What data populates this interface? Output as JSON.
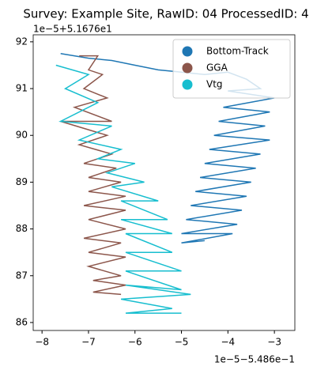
{
  "chart_data": {
    "type": "line",
    "title": "Survey: Example Site, RawID: 04 ProcessedID: 4",
    "x_offset_label": "1e−5−5.486e−1",
    "y_offset_label": "1e−5+5.1676e1",
    "xlim": [
      -8.19,
      -2.56
    ],
    "ylim": [
      85.83,
      92.15
    ],
    "xticks": [
      {
        "value": -8,
        "label": "−8"
      },
      {
        "value": -7,
        "label": "−7"
      },
      {
        "value": -6,
        "label": "−6"
      },
      {
        "value": -5,
        "label": "−5"
      },
      {
        "value": -4,
        "label": "−4"
      },
      {
        "value": -3,
        "label": "−3"
      }
    ],
    "yticks": [
      86,
      87,
      88,
      89,
      90,
      91,
      92
    ],
    "grid": false,
    "legend": "upper right",
    "series": [
      {
        "name": "Bottom-Track",
        "color": "#1f77b4",
        "x": [
          -7.6,
          -7.0,
          -6.5,
          -6.0,
          -5.5,
          -5.0,
          -4.5,
          -4.0,
          -3.6,
          -3.3,
          -4.0,
          -3.0,
          -4.1,
          -3.1,
          -4.2,
          -3.2,
          -4.3,
          -3.1,
          -4.4,
          -3.3,
          -4.5,
          -3.4,
          -4.6,
          -3.5,
          -4.7,
          -3.6,
          -4.8,
          -3.7,
          -4.9,
          -3.8,
          -5.0,
          -3.9,
          -5.0,
          -4.5
        ],
        "y": [
          91.75,
          91.65,
          91.6,
          91.5,
          91.4,
          91.35,
          91.3,
          91.35,
          91.2,
          91.0,
          90.95,
          90.8,
          90.6,
          90.5,
          90.3,
          90.2,
          90.0,
          89.9,
          89.7,
          89.6,
          89.4,
          89.3,
          89.1,
          89.0,
          88.8,
          88.7,
          88.5,
          88.4,
          88.2,
          88.1,
          87.9,
          87.9,
          87.7,
          87.75
        ]
      },
      {
        "name": "GGA",
        "color": "#8c564b",
        "x": [
          -7.2,
          -6.8,
          -7.0,
          -6.7,
          -7.1,
          -6.6,
          -7.3,
          -6.5,
          -7.6,
          -6.6,
          -7.2,
          -6.5,
          -7.1,
          -6.4,
          -7.0,
          -6.3,
          -7.0,
          -6.2,
          -7.1,
          -6.2,
          -7.0,
          -6.2,
          -7.1,
          -6.3,
          -7.0,
          -6.2,
          -7.0,
          -6.3,
          -6.9,
          -6.2,
          -6.9,
          -6.3
        ],
        "y": [
          91.7,
          91.7,
          91.4,
          91.3,
          91.0,
          90.8,
          90.6,
          90.3,
          90.3,
          90.0,
          89.8,
          89.6,
          89.4,
          89.3,
          89.1,
          89.0,
          88.8,
          88.7,
          88.5,
          88.4,
          88.2,
          88.0,
          87.8,
          87.7,
          87.5,
          87.4,
          87.2,
          87.0,
          86.9,
          86.8,
          86.65,
          86.6
        ]
      },
      {
        "name": "Vtg",
        "color": "#17becf",
        "x": [
          -7.7,
          -7.0,
          -7.5,
          -6.8,
          -7.6,
          -6.5,
          -7.2,
          -6.3,
          -6.8,
          -6.0,
          -6.6,
          -5.8,
          -6.5,
          -5.5,
          -6.3,
          -5.3,
          -6.3,
          -5.2,
          -6.2,
          -5.2,
          -6.2,
          -5.0,
          -6.2,
          -5.0,
          -6.2,
          -4.8,
          -6.3,
          -5.2,
          -6.2,
          -5.0
        ],
        "y": [
          91.5,
          91.3,
          91.0,
          90.7,
          90.3,
          90.2,
          89.9,
          89.7,
          89.5,
          89.4,
          89.2,
          89.0,
          88.9,
          88.6,
          88.6,
          88.2,
          88.2,
          87.9,
          87.9,
          87.5,
          87.5,
          87.1,
          87.1,
          86.7,
          86.8,
          86.6,
          86.5,
          86.3,
          86.2,
          86.2
        ]
      }
    ]
  }
}
